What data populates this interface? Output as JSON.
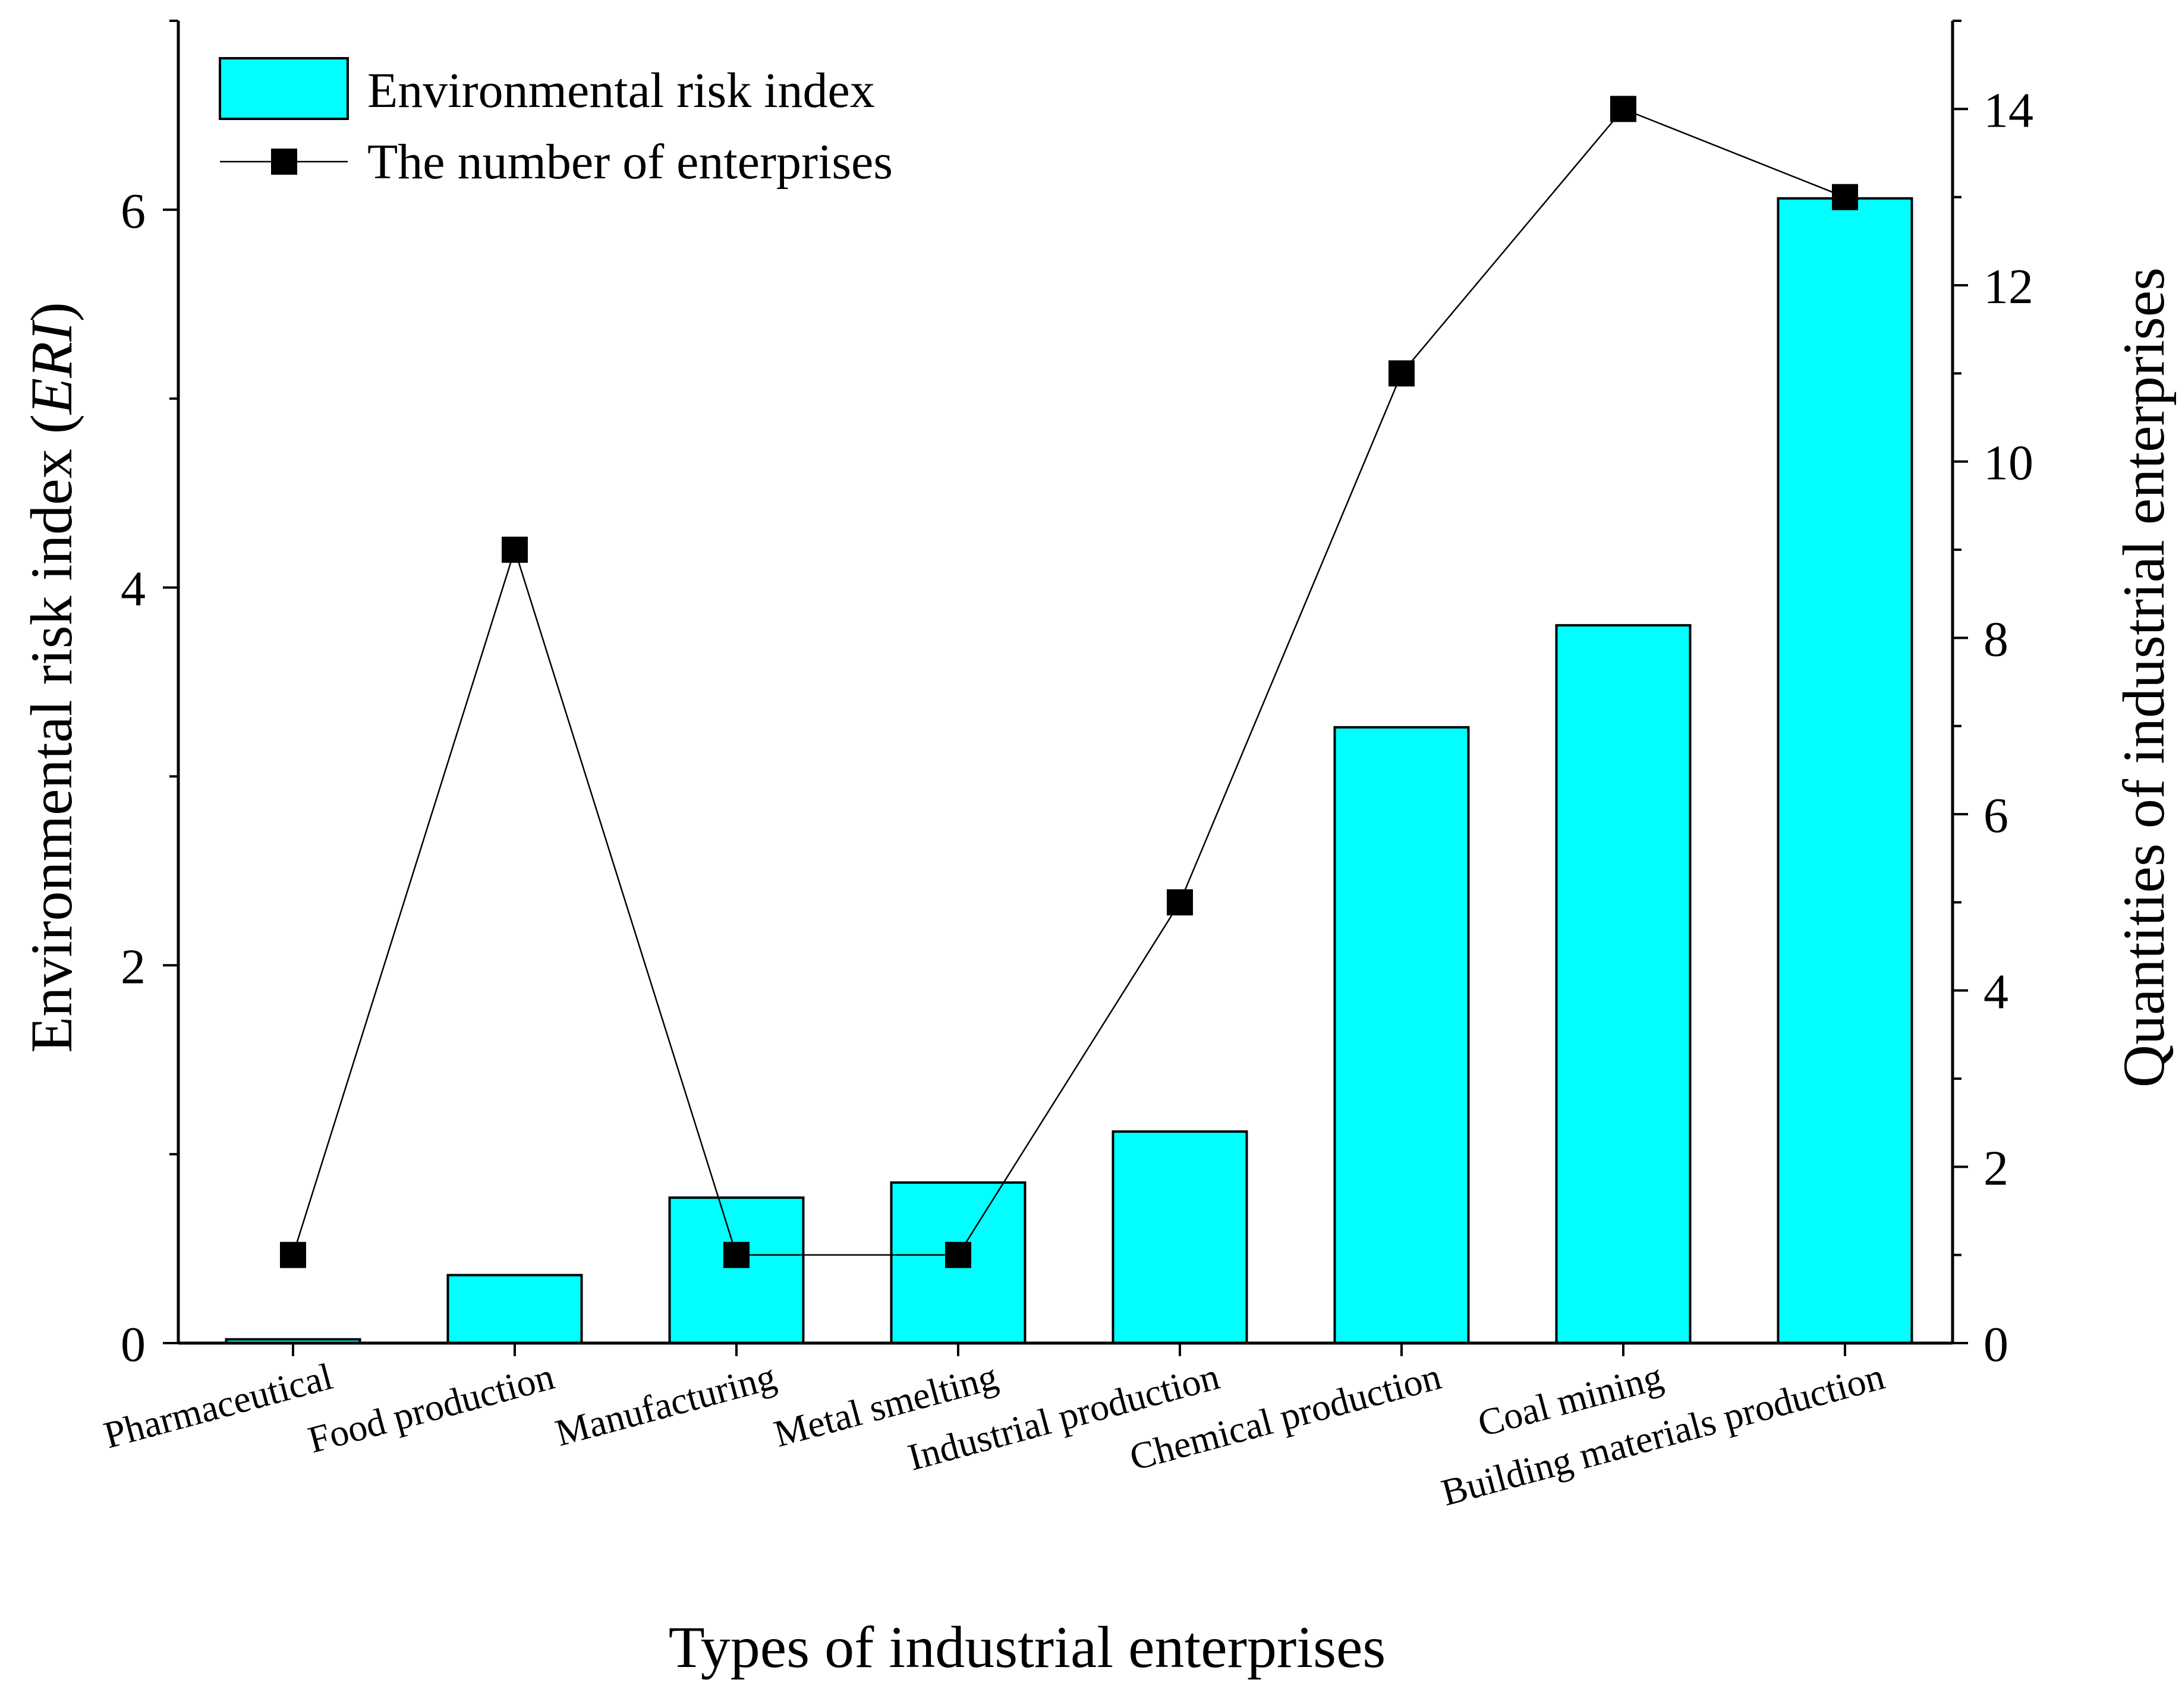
{
  "chart_data": {
    "type": "bar+line",
    "categories": [
      "Pharmaceutical",
      "Food production",
      "Manufacturing",
      "Metal smelting",
      "Industrial production",
      "Chemical production",
      "Coal mining",
      "Building materials production"
    ],
    "series": [
      {
        "name": "Environmental risk index",
        "type": "bar",
        "axis": "left",
        "color": "#00ffff",
        "values": [
          0.02,
          0.36,
          0.77,
          0.85,
          1.12,
          3.26,
          3.8,
          6.06
        ]
      },
      {
        "name": "The number of enterprises",
        "type": "line",
        "axis": "right",
        "color": "#000000",
        "values": [
          1,
          9,
          1,
          1,
          5,
          11,
          14,
          13
        ]
      }
    ],
    "xlabel": "Types of industrial enterprises",
    "ylabel": {
      "text": "Environmental risk index (",
      "italic": "ERI",
      "close": ")"
    },
    "y2label": "Quantities of industrial enterprises",
    "ylim": [
      0,
      7
    ],
    "y2lim": [
      0,
      15
    ],
    "yticks": [
      0,
      2,
      4,
      6
    ],
    "y2ticks": [
      0,
      2,
      4,
      6,
      8,
      10,
      12,
      14
    ],
    "legend": {
      "position": "top-left",
      "items": [
        {
          "label": "Environmental risk index",
          "kind": "bar"
        },
        {
          "label": "The number of enterprises",
          "kind": "line"
        }
      ]
    }
  }
}
